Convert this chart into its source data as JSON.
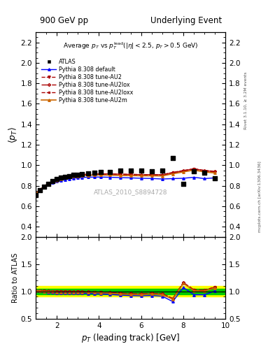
{
  "title_left": "900 GeV pp",
  "title_right": "Underlying Event",
  "xlabel": "p_{T} (leading track) [GeV]",
  "ylabel_main": "<p_{T}>",
  "ylabel_ratio": "Ratio to ATLAS",
  "watermark": "ATLAS_2010_S8894728",
  "right_label_top": "Rivet 3.1.10, ≥ 3.2M events",
  "right_label_bot": "mcplots.cern.ch [arXiv:1306.3436]",
  "xlim": [
    1,
    10
  ],
  "ylim_main": [
    0.3,
    2.3
  ],
  "ylim_ratio": [
    0.5,
    2.0
  ],
  "yticks_main": [
    0.4,
    0.6,
    0.8,
    1.0,
    1.2,
    1.4,
    1.6,
    1.8,
    2.0,
    2.2
  ],
  "yticks_ratio": [
    0.5,
    1.0,
    1.5,
    2.0
  ],
  "atlas_x": [
    1.0,
    1.2,
    1.4,
    1.6,
    1.8,
    2.0,
    2.2,
    2.4,
    2.6,
    2.8,
    3.0,
    3.2,
    3.5,
    3.8,
    4.1,
    4.5,
    5.0,
    5.5,
    6.0,
    6.5,
    7.0,
    7.5,
    8.0,
    8.5,
    9.0,
    9.5
  ],
  "atlas_y": [
    0.71,
    0.755,
    0.79,
    0.82,
    0.845,
    0.865,
    0.877,
    0.887,
    0.895,
    0.903,
    0.908,
    0.912,
    0.918,
    0.925,
    0.93,
    0.935,
    0.945,
    0.95,
    0.95,
    0.942,
    0.95,
    1.07,
    0.815,
    0.94,
    0.928,
    0.87
  ],
  "default_x": [
    1.0,
    1.2,
    1.4,
    1.6,
    1.8,
    2.0,
    2.2,
    2.4,
    2.6,
    2.8,
    3.0,
    3.2,
    3.5,
    3.8,
    4.1,
    4.5,
    5.0,
    5.5,
    6.0,
    6.5,
    7.0,
    7.5,
    8.0,
    8.5,
    9.0,
    9.5
  ],
  "default_y": [
    0.718,
    0.757,
    0.787,
    0.81,
    0.829,
    0.843,
    0.853,
    0.861,
    0.868,
    0.873,
    0.877,
    0.88,
    0.883,
    0.884,
    0.884,
    0.882,
    0.879,
    0.876,
    0.872,
    0.87,
    0.865,
    0.869,
    0.872,
    0.882,
    0.869,
    0.876
  ],
  "au2_x": [
    1.0,
    1.2,
    1.4,
    1.6,
    1.8,
    2.0,
    2.2,
    2.4,
    2.6,
    2.8,
    3.0,
    3.2,
    3.5,
    3.8,
    4.1,
    4.5,
    5.0,
    5.5,
    6.0,
    6.5,
    7.0,
    7.5,
    8.0,
    8.5,
    9.0,
    9.5
  ],
  "au2_y": [
    0.72,
    0.76,
    0.793,
    0.82,
    0.84,
    0.856,
    0.869,
    0.879,
    0.887,
    0.893,
    0.899,
    0.902,
    0.906,
    0.908,
    0.909,
    0.908,
    0.905,
    0.903,
    0.901,
    0.901,
    0.9,
    0.92,
    0.94,
    0.96,
    0.942,
    0.932
  ],
  "au2lox_x": [
    1.0,
    1.2,
    1.4,
    1.6,
    1.8,
    2.0,
    2.2,
    2.4,
    2.6,
    2.8,
    3.0,
    3.2,
    3.5,
    3.8,
    4.1,
    4.5,
    5.0,
    5.5,
    6.0,
    6.5,
    7.0,
    7.5,
    8.0,
    8.5,
    9.0,
    9.5
  ],
  "au2lox_y": [
    0.72,
    0.761,
    0.795,
    0.823,
    0.844,
    0.861,
    0.874,
    0.884,
    0.892,
    0.899,
    0.904,
    0.908,
    0.912,
    0.914,
    0.915,
    0.915,
    0.912,
    0.91,
    0.908,
    0.908,
    0.907,
    0.927,
    0.946,
    0.964,
    0.947,
    0.937
  ],
  "au2loxx_x": [
    1.0,
    1.2,
    1.4,
    1.6,
    1.8,
    2.0,
    2.2,
    2.4,
    2.6,
    2.8,
    3.0,
    3.2,
    3.5,
    3.8,
    4.1,
    4.5,
    5.0,
    5.5,
    6.0,
    6.5,
    7.0,
    7.5,
    8.0,
    8.5,
    9.0,
    9.5
  ],
  "au2loxx_y": [
    0.72,
    0.761,
    0.795,
    0.823,
    0.844,
    0.861,
    0.874,
    0.884,
    0.892,
    0.899,
    0.904,
    0.908,
    0.912,
    0.914,
    0.915,
    0.915,
    0.912,
    0.91,
    0.908,
    0.908,
    0.907,
    0.93,
    0.948,
    0.966,
    0.95,
    0.94
  ],
  "au2m_x": [
    1.0,
    1.2,
    1.4,
    1.6,
    1.8,
    2.0,
    2.2,
    2.4,
    2.6,
    2.8,
    3.0,
    3.2,
    3.5,
    3.8,
    4.1,
    4.5,
    5.0,
    5.5,
    6.0,
    6.5,
    7.0,
    7.5,
    8.0,
    8.5,
    9.0,
    9.5
  ],
  "au2m_y": [
    0.719,
    0.759,
    0.792,
    0.818,
    0.839,
    0.854,
    0.866,
    0.876,
    0.884,
    0.89,
    0.895,
    0.899,
    0.902,
    0.904,
    0.904,
    0.903,
    0.9,
    0.898,
    0.896,
    0.896,
    0.895,
    0.916,
    0.934,
    0.952,
    0.934,
    0.924
  ],
  "ratio_default_y": [
    1.011,
    1.003,
    0.996,
    0.988,
    0.981,
    0.975,
    0.973,
    0.97,
    0.97,
    0.967,
    0.966,
    0.965,
    0.962,
    0.956,
    0.951,
    0.944,
    0.93,
    0.922,
    0.918,
    0.924,
    0.911,
    0.812,
    1.07,
    0.938,
    0.937,
    1.007
  ],
  "ratio_au2_y": [
    1.014,
    1.007,
    1.004,
    1.0,
    0.994,
    0.99,
    0.992,
    0.991,
    0.991,
    0.989,
    0.99,
    0.989,
    0.986,
    0.981,
    0.977,
    0.971,
    0.957,
    0.951,
    0.948,
    0.956,
    0.947,
    0.86,
    1.154,
    1.021,
    1.015,
    1.071
  ],
  "ratio_au2lox_y": [
    1.014,
    1.008,
    1.006,
    1.003,
    0.998,
    0.996,
    0.997,
    0.996,
    0.997,
    0.995,
    0.996,
    0.996,
    0.993,
    0.988,
    0.984,
    0.979,
    0.966,
    0.958,
    0.956,
    0.964,
    0.955,
    0.867,
    1.161,
    1.026,
    1.02,
    1.077
  ],
  "ratio_au2loxx_y": [
    1.014,
    1.008,
    1.006,
    1.003,
    0.998,
    0.996,
    0.997,
    0.996,
    0.997,
    0.995,
    0.996,
    0.996,
    0.993,
    0.988,
    0.984,
    0.979,
    0.966,
    0.958,
    0.956,
    0.964,
    0.956,
    0.87,
    1.163,
    1.028,
    1.023,
    1.08
  ],
  "ratio_au2m_y": [
    1.013,
    1.005,
    1.002,
    0.997,
    0.993,
    0.988,
    0.989,
    0.988,
    0.988,
    0.986,
    0.986,
    0.985,
    0.982,
    0.977,
    0.973,
    0.966,
    0.952,
    0.945,
    0.943,
    0.951,
    0.942,
    0.856,
    1.147,
    1.013,
    1.006,
    1.063
  ],
  "color_default": "#0000ff",
  "color_au2": "#aa0000",
  "color_au2lox": "#aa0000",
  "color_au2loxx": "#aa0000",
  "color_au2m": "#cc6600",
  "band_yellow": "#ffff00",
  "band_green": "#00cc00",
  "bg_color": "#ffffff"
}
